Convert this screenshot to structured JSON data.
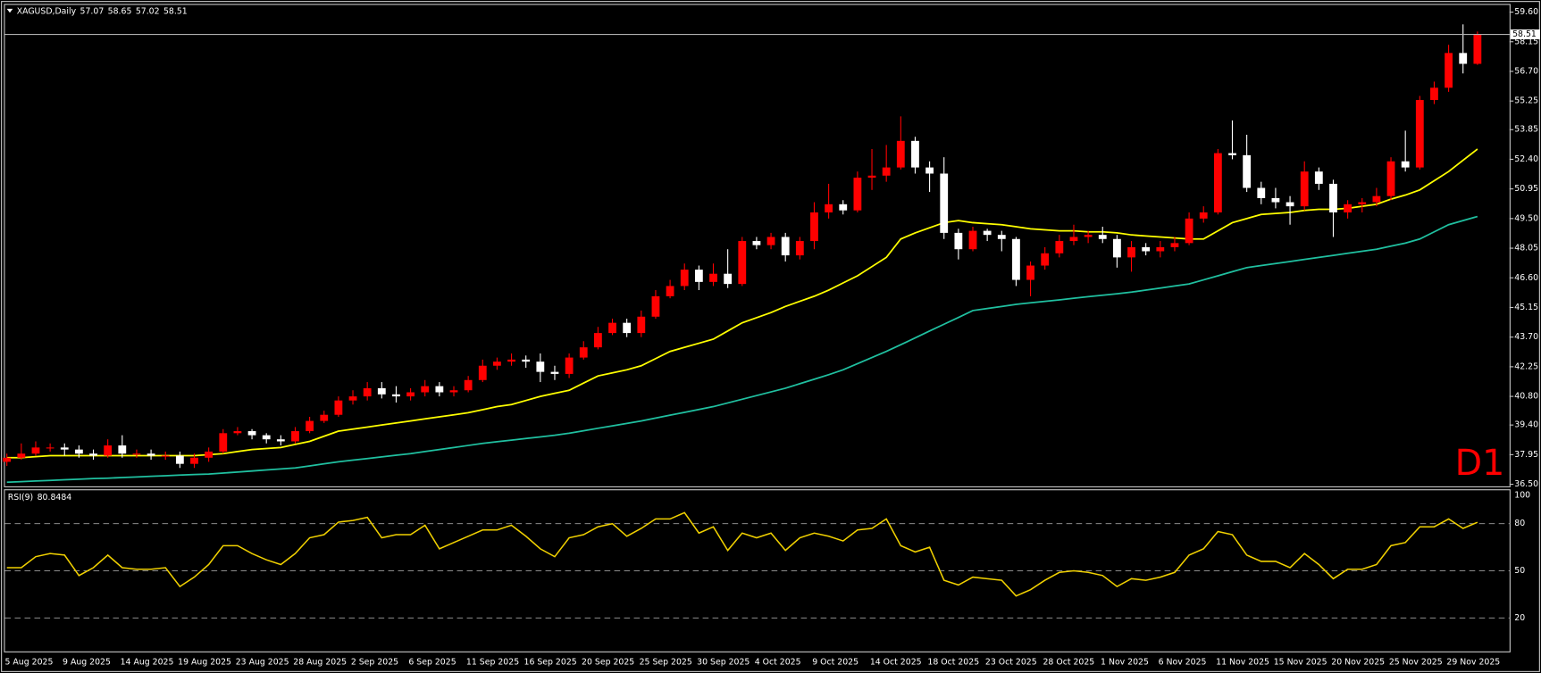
{
  "chart_data": [
    {
      "type": "candlestick",
      "title": "XAGUSD,Daily",
      "categories": [
        "5 Aug 2025",
        null,
        null,
        null,
        "9 Aug 2025",
        null,
        null,
        null,
        "14 Aug 2025",
        null,
        null,
        null,
        "19 Aug 2025",
        null,
        null,
        null,
        "23 Aug 2025",
        null,
        null,
        null,
        "28 Aug 2025",
        null,
        null,
        null,
        "2 Sep 2025",
        null,
        null,
        null,
        "6 Sep 2025",
        null,
        null,
        null,
        "11 Sep 2025",
        null,
        null,
        null,
        "16 Sep 2025",
        null,
        null,
        null,
        "20 Sep 2025",
        null,
        null,
        null,
        "25 Sep 2025",
        null,
        null,
        null,
        "30 Sep 2025",
        null,
        null,
        null,
        "4 Oct 2025",
        null,
        null,
        null,
        "9 Oct 2025",
        null,
        null,
        null,
        "14 Oct 2025",
        null,
        null,
        null,
        "18 Oct 2025",
        null,
        null,
        null,
        "23 Oct 2025",
        null,
        null,
        null,
        "28 Oct 2025",
        null,
        null,
        null,
        "1 Nov 2025",
        null,
        null,
        null,
        "6 Nov 2025",
        null,
        null,
        null,
        "11 Nov 2025",
        null,
        null,
        null,
        "15 Nov 2025",
        null,
        null,
        null,
        "20 Nov 2025",
        null,
        null,
        null,
        "25 Nov 2025",
        null,
        null,
        null,
        "29 Nov 2025",
        null,
        null
      ],
      "open": [
        37.6,
        37.8,
        38.0,
        38.3,
        38.3,
        38.2,
        38.0,
        37.9,
        38.4,
        38.0,
        38.0,
        37.9,
        37.9,
        37.5,
        37.8,
        38.1,
        39.0,
        39.1,
        38.9,
        38.7,
        38.6,
        39.1,
        39.6,
        39.9,
        40.6,
        40.8,
        41.2,
        40.9,
        40.8,
        41.0,
        41.3,
        41.0,
        41.1,
        41.6,
        42.3,
        42.5,
        42.6,
        42.5,
        42.0,
        41.9,
        42.7,
        43.2,
        43.9,
        44.4,
        43.9,
        44.7,
        45.7,
        46.2,
        47.0,
        46.4,
        46.8,
        46.3,
        48.4,
        48.2,
        48.6,
        47.7,
        48.4,
        49.8,
        50.2,
        49.9,
        51.5,
        51.6,
        52.0,
        53.3,
        52.0,
        51.7,
        48.8,
        48.0,
        48.9,
        48.7,
        48.5,
        46.5,
        47.2,
        47.8,
        48.4,
        48.6,
        48.7,
        48.5,
        47.6,
        48.1,
        47.9,
        48.1,
        48.3,
        49.5,
        49.8,
        52.7,
        52.6,
        51.0,
        50.5,
        50.3,
        50.1,
        51.8,
        51.2,
        49.8,
        50.2,
        50.3,
        50.6,
        52.3,
        52.0,
        55.3,
        55.9,
        57.6,
        57.07
      ],
      "high": [
        38.0,
        38.5,
        38.6,
        38.5,
        38.5,
        38.4,
        38.2,
        38.7,
        38.9,
        38.2,
        38.2,
        38.1,
        38.1,
        38.0,
        38.3,
        39.2,
        39.3,
        39.2,
        39.0,
        38.9,
        39.3,
        39.8,
        40.1,
        40.8,
        41.1,
        41.5,
        41.5,
        41.3,
        41.2,
        41.6,
        41.5,
        41.3,
        41.8,
        42.6,
        42.7,
        42.9,
        42.8,
        42.9,
        42.3,
        42.9,
        43.5,
        44.2,
        44.6,
        44.6,
        45.0,
        46.0,
        46.5,
        47.3,
        47.2,
        47.3,
        48.0,
        48.6,
        48.6,
        48.8,
        48.8,
        48.6,
        50.3,
        51.2,
        50.4,
        51.8,
        52.9,
        53.1,
        54.5,
        53.5,
        52.3,
        52.5,
        49.0,
        49.1,
        49.0,
        48.9,
        48.6,
        47.4,
        48.1,
        48.7,
        49.2,
        48.9,
        49.1,
        48.7,
        48.4,
        48.3,
        48.4,
        48.6,
        49.8,
        50.1,
        52.9,
        54.3,
        53.6,
        51.3,
        51.0,
        50.6,
        52.3,
        52.0,
        51.4,
        50.4,
        50.5,
        51.0,
        52.5,
        53.8,
        55.5,
        56.2,
        58.0,
        59.0,
        58.65
      ],
      "low": [
        37.4,
        37.7,
        37.9,
        38.1,
        37.9,
        37.8,
        37.7,
        37.8,
        37.8,
        37.8,
        37.7,
        37.7,
        37.3,
        37.3,
        37.6,
        38.0,
        38.9,
        38.7,
        38.5,
        38.4,
        38.5,
        39.0,
        39.5,
        39.8,
        40.4,
        40.6,
        40.7,
        40.5,
        40.6,
        40.8,
        40.8,
        40.8,
        41.0,
        41.5,
        42.1,
        42.3,
        42.2,
        41.5,
        41.6,
        41.7,
        42.6,
        43.1,
        43.8,
        43.7,
        43.7,
        44.6,
        45.6,
        46.0,
        46.0,
        46.2,
        46.1,
        46.2,
        48.0,
        48.0,
        47.4,
        47.5,
        48.0,
        49.5,
        49.7,
        49.8,
        50.9,
        51.3,
        51.9,
        51.7,
        50.8,
        48.5,
        47.5,
        47.9,
        48.4,
        47.9,
        46.2,
        45.7,
        47.0,
        47.6,
        48.2,
        48.3,
        48.3,
        47.1,
        46.9,
        47.7,
        47.6,
        47.9,
        48.2,
        49.3,
        49.7,
        52.4,
        50.8,
        50.2,
        50.0,
        49.2,
        49.9,
        50.9,
        48.6,
        49.5,
        49.8,
        50.1,
        50.4,
        51.8,
        51.9,
        55.1,
        55.7,
        56.6,
        57.02
      ],
      "close": [
        37.8,
        38.0,
        38.3,
        38.3,
        38.2,
        38.0,
        37.9,
        38.4,
        38.0,
        38.0,
        37.9,
        37.9,
        37.5,
        37.8,
        38.1,
        39.0,
        39.1,
        38.9,
        38.7,
        38.6,
        39.1,
        39.6,
        39.9,
        40.6,
        40.8,
        41.2,
        40.9,
        40.8,
        41.0,
        41.3,
        41.0,
        41.1,
        41.6,
        42.3,
        42.5,
        42.6,
        42.5,
        42.0,
        41.9,
        42.7,
        43.2,
        43.9,
        44.4,
        43.9,
        44.7,
        45.7,
        46.2,
        47.0,
        46.4,
        46.8,
        46.3,
        48.4,
        48.2,
        48.6,
        47.7,
        48.4,
        49.8,
        50.2,
        49.9,
        51.5,
        51.6,
        52.0,
        53.3,
        52.0,
        51.7,
        48.8,
        48.0,
        48.9,
        48.7,
        48.5,
        46.5,
        47.2,
        47.8,
        48.4,
        48.6,
        48.7,
        48.5,
        47.6,
        48.1,
        47.9,
        48.1,
        48.3,
        49.5,
        49.8,
        52.7,
        52.6,
        51.0,
        50.5,
        50.3,
        50.1,
        51.8,
        51.2,
        49.8,
        50.2,
        50.3,
        50.6,
        52.3,
        52.0,
        55.3,
        55.9,
        57.6,
        57.07,
        58.51
      ],
      "up_color": "#ff0000",
      "down_color": "#ffffff",
      "series": [
        {
          "color": "#ffff00",
          "values": [
            37.8,
            37.8,
            37.85,
            37.9,
            37.9,
            37.9,
            37.9,
            37.9,
            37.9,
            37.9,
            37.9,
            37.9,
            37.9,
            37.9,
            37.95,
            38.0,
            38.1,
            38.2,
            38.25,
            38.3,
            38.45,
            38.6,
            38.85,
            39.1,
            39.2,
            39.3,
            39.4,
            39.5,
            39.6,
            39.7,
            39.8,
            39.9,
            40.0,
            40.15,
            40.3,
            40.4,
            40.6,
            40.8,
            40.95,
            41.1,
            41.45,
            41.8,
            41.95,
            42.1,
            42.3,
            42.65,
            43.0,
            43.2,
            43.4,
            43.6,
            44.0,
            44.4,
            44.65,
            44.9,
            45.2,
            45.45,
            45.7,
            46.0,
            46.35,
            46.7,
            47.15,
            47.6,
            48.5,
            48.8,
            49.05,
            49.3,
            49.4,
            49.3,
            49.25,
            49.2,
            49.1,
            49.0,
            48.95,
            48.9,
            48.9,
            48.85,
            48.85,
            48.8,
            48.7,
            48.65,
            48.6,
            48.55,
            48.5,
            48.5,
            48.9,
            49.3,
            49.5,
            49.7,
            49.75,
            49.8,
            49.9,
            49.95,
            49.95,
            50.0,
            50.1,
            50.2,
            50.45,
            50.65,
            50.9,
            51.35,
            51.8,
            52.35,
            52.9
          ]
        },
        {
          "color": "#20c0a0",
          "values": [
            36.6,
            36.63,
            36.66,
            36.69,
            36.72,
            36.75,
            36.78,
            36.8,
            36.83,
            36.86,
            36.89,
            36.92,
            36.95,
            36.98,
            37.0,
            37.05,
            37.1,
            37.15,
            37.2,
            37.25,
            37.3,
            37.4,
            37.5,
            37.6,
            37.68,
            37.76,
            37.84,
            37.92,
            38.0,
            38.1,
            38.2,
            38.3,
            38.4,
            38.5,
            38.58,
            38.66,
            38.74,
            38.82,
            38.9,
            39.0,
            39.12,
            39.24,
            39.36,
            39.48,
            39.6,
            39.74,
            39.88,
            40.02,
            40.16,
            40.3,
            40.48,
            40.66,
            40.84,
            41.02,
            41.2,
            41.42,
            41.64,
            41.86,
            42.1,
            42.4,
            42.7,
            43.0,
            43.33,
            43.66,
            44.0,
            44.33,
            44.66,
            45.0,
            45.1,
            45.2,
            45.3,
            45.38,
            45.45,
            45.52,
            45.6,
            45.68,
            45.75,
            45.82,
            45.9,
            46.0,
            46.1,
            46.2,
            46.3,
            46.5,
            46.7,
            46.9,
            47.1,
            47.2,
            47.3,
            47.4,
            47.5,
            47.6,
            47.7,
            47.8,
            47.9,
            48.0,
            48.15,
            48.3,
            48.5,
            48.85,
            49.2,
            49.4,
            49.6
          ]
        }
      ],
      "ylim": [
        36.4,
        60.0
      ],
      "yticks": [
        {
          "value": 59.6,
          "label": "59.60"
        },
        58.15,
        {
          "value": 56.7,
          "label": "56.70"
        },
        55.25,
        53.85,
        {
          "value": 52.4,
          "label": "52.40"
        },
        50.95,
        {
          "value": 49.5,
          "label": "49.50"
        },
        48.05,
        {
          "value": 46.6,
          "label": "46.60"
        },
        45.15,
        {
          "value": 43.7,
          "label": "43.70"
        },
        42.25,
        {
          "value": 40.8,
          "label": "40.80"
        },
        {
          "value": 39.4,
          "label": "39.40"
        },
        37.95,
        {
          "value": 36.5,
          "label": "36.50"
        }
      ],
      "price_line_color": "#b0b0b0",
      "timeframe_label": "D1",
      "timeframe_color": "#ff0000"
    },
    {
      "type": "line",
      "title": "RSI(9)",
      "color": "#f0d000",
      "values": [
        52,
        52,
        59,
        61,
        60,
        47,
        52,
        60,
        52,
        51,
        51,
        52,
        40,
        46,
        54,
        66,
        66,
        61,
        57,
        54,
        61,
        71,
        73,
        81,
        82,
        84,
        71,
        73,
        73,
        79,
        64,
        68,
        72,
        76,
        76,
        79,
        72,
        64,
        59,
        71,
        73,
        78,
        80,
        72,
        77,
        83,
        83,
        87,
        74,
        78,
        63,
        74,
        71,
        74,
        63,
        71,
        74,
        72,
        69,
        76,
        77,
        83,
        66,
        62,
        65,
        44,
        41,
        46,
        45,
        44,
        34,
        38,
        44,
        49,
        50,
        49,
        47,
        40,
        45,
        44,
        46,
        49,
        60,
        64,
        75,
        73,
        60,
        56,
        56,
        52,
        61,
        54,
        45,
        51,
        51,
        54,
        66,
        68,
        78,
        78,
        83,
        77,
        80.8484
      ],
      "ylim": [
        0,
        100
      ],
      "yticks": [
        20,
        50,
        80,
        100
      ],
      "level_lines": true,
      "level_color": "#a0a0a0"
    }
  ]
}
